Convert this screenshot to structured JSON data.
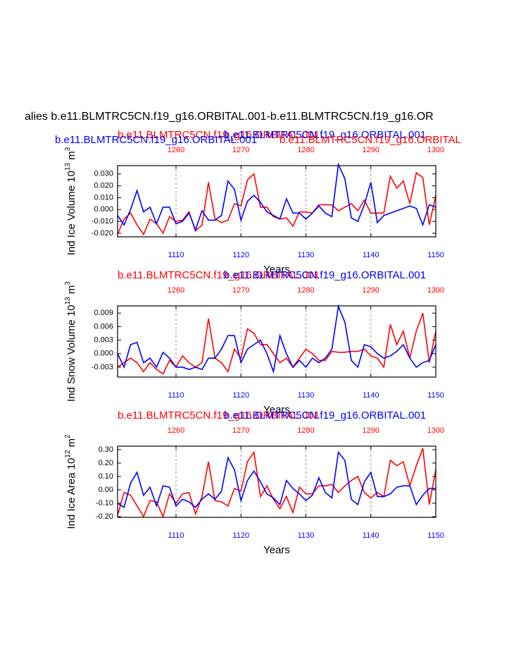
{
  "title": "alies b.e11.BLMTRC5CN.f19_g16.ORBITAL.001-b.e11.BLMTRC5CN.f19_g16.OR",
  "chart_data": [
    {
      "type": "line",
      "ylabel": [
        {
          "text": "Ind Ice Volume 10"
        },
        {
          "text": "13",
          "sup": true
        },
        {
          "text": " m"
        },
        {
          "text": "3",
          "sup": true
        }
      ],
      "xlabel": "Years",
      "extra_labels": [
        {
          "text": "b.e11.BLMTRC5CN.f19_g16.ORBITAL.001",
          "color": "#0000ff"
        },
        {
          "text": "b.e11.BLMTRC5CN.f19_g16.ORBITAL",
          "color": "#ff0000"
        }
      ],
      "xlim": [
        1101,
        1150
      ],
      "xticks": [
        1110,
        1120,
        1130,
        1140,
        1150
      ],
      "x2lim": [
        1251,
        1300
      ],
      "x2ticks": [
        1260,
        1270,
        1280,
        1290,
        1300
      ],
      "ylim": [
        -0.023,
        0.037
      ],
      "yticks": [
        {
          "value": 0.03,
          "label": "0.030"
        },
        {
          "value": 0.02,
          "label": "0.020"
        },
        {
          "value": 0.01,
          "label": "0.010"
        },
        {
          "value": 0,
          "label": "0.000"
        },
        {
          "value": -0.01,
          "label": "-0.010"
        },
        {
          "value": -0.02,
          "label": "-0.020"
        }
      ],
      "grid": true,
      "x": [
        1101,
        1102,
        1103,
        1104,
        1105,
        1106,
        1107,
        1108,
        1109,
        1110,
        1111,
        1112,
        1113,
        1114,
        1115,
        1116,
        1117,
        1118,
        1119,
        1120,
        1121,
        1122,
        1123,
        1124,
        1125,
        1126,
        1127,
        1128,
        1129,
        1130,
        1131,
        1132,
        1133,
        1134,
        1135,
        1136,
        1137,
        1138,
        1139,
        1140,
        1141,
        1142,
        1143,
        1144,
        1145,
        1146,
        1147,
        1148,
        1149,
        1150
      ],
      "x2": [
        1251,
        1252,
        1253,
        1254,
        1255,
        1256,
        1257,
        1258,
        1259,
        1260,
        1261,
        1262,
        1263,
        1264,
        1265,
        1266,
        1267,
        1268,
        1269,
        1270,
        1271,
        1272,
        1273,
        1274,
        1275,
        1276,
        1277,
        1278,
        1279,
        1280,
        1281,
        1282,
        1283,
        1284,
        1285,
        1286,
        1287,
        1288,
        1289,
        1290,
        1291,
        1292,
        1293,
        1294,
        1295,
        1296,
        1297,
        1298,
        1299,
        1300
      ],
      "series": [
        {
          "name": "b.e11.BLMTRC5CN.f19_g16.ORBITAL.001",
          "color": "#ff0000",
          "axis": "x2",
          "values": [
            -0.021,
            -0.008,
            -0.003,
            -0.013,
            -0.021,
            -0.008,
            -0.012,
            -0.02,
            -0.006,
            -0.01,
            -0.009,
            -0.002,
            -0.018,
            -0.013,
            0.023,
            -0.008,
            -0.011,
            -0.009,
            0.005,
            0.003,
            0.025,
            0.03,
            0.002,
            0.002,
            -0.006,
            -0.008,
            -0.007,
            -0.014,
            -0.002,
            -0.002,
            -0.003,
            0.004,
            0.004,
            0.004,
            -0.001,
            0.002,
            0.005,
            -0.001,
            0.008,
            -0.003,
            -0.003,
            -0.003,
            0.028,
            0.018,
            0.024,
            0.005,
            0.031,
            0.027,
            -0.013,
            0.012
          ]
        },
        {
          "name": "b.e11.BLMTRC5CN.f19_g16.ORBITAL.001",
          "color": "#0000ff",
          "values": [
            -0.005,
            -0.013,
            0.0,
            0.016,
            -0.002,
            0.002,
            -0.012,
            0.002,
            0.002,
            -0.012,
            -0.01,
            -0.003,
            -0.017,
            -0.001,
            -0.009,
            -0.009,
            -0.005,
            0.024,
            0.017,
            -0.009,
            0.007,
            0.012,
            0.006,
            -0.002,
            -0.005,
            -0.008,
            0.009,
            -0.003,
            -0.003,
            -0.008,
            -0.003,
            0.003,
            -0.003,
            -0.006,
            0.038,
            0.026,
            -0.007,
            -0.01,
            0.004,
            0.023,
            -0.011,
            -0.005,
            -0.003,
            -0.001,
            0.001,
            0.003,
            0.001,
            -0.013,
            0.004,
            0.002
          ]
        }
      ]
    },
    {
      "type": "line",
      "ylabel": [
        {
          "text": "Ind Snow Volume 10"
        },
        {
          "text": "13",
          "sup": true
        },
        {
          "text": " m"
        },
        {
          "text": "3",
          "sup": true
        }
      ],
      "xlabel": "Years",
      "xlim": [
        1101,
        1150
      ],
      "xticks": [
        1110,
        1120,
        1130,
        1140,
        1150
      ],
      "x2lim": [
        1251,
        1300
      ],
      "x2ticks": [
        1260,
        1270,
        1280,
        1290,
        1300
      ],
      "ylim": [
        -0.0052,
        0.0106
      ],
      "yticks": [
        {
          "value": 0.009,
          "label": "0.009"
        },
        {
          "value": 0.006,
          "label": "0.006"
        },
        {
          "value": 0.003,
          "label": "0.003"
        },
        {
          "value": 0,
          "label": "0.000"
        },
        {
          "value": -0.003,
          "label": "-0.003"
        }
      ],
      "grid": true,
      "x": [
        1101,
        1102,
        1103,
        1104,
        1105,
        1106,
        1107,
        1108,
        1109,
        1110,
        1111,
        1112,
        1113,
        1114,
        1115,
        1116,
        1117,
        1118,
        1119,
        1120,
        1121,
        1122,
        1123,
        1124,
        1125,
        1126,
        1127,
        1128,
        1129,
        1130,
        1131,
        1132,
        1133,
        1134,
        1135,
        1136,
        1137,
        1138,
        1139,
        1140,
        1141,
        1142,
        1143,
        1144,
        1145,
        1146,
        1147,
        1148,
        1149,
        1150
      ],
      "x2": [
        1251,
        1252,
        1253,
        1254,
        1255,
        1256,
        1257,
        1258,
        1259,
        1260,
        1261,
        1262,
        1263,
        1264,
        1265,
        1266,
        1267,
        1268,
        1269,
        1270,
        1271,
        1272,
        1273,
        1274,
        1275,
        1276,
        1277,
        1278,
        1279,
        1280,
        1281,
        1282,
        1283,
        1284,
        1285,
        1286,
        1287,
        1288,
        1289,
        1290,
        1291,
        1292,
        1293,
        1294,
        1295,
        1296,
        1297,
        1298,
        1299,
        1300
      ],
      "series": [
        {
          "name": "b.e11.BLMTRC5CN.f19_g16.ORBITAL.001",
          "color": "#ff0000",
          "axis": "x2",
          "values": [
            -0.003,
            -0.002,
            -0.001,
            -0.002,
            -0.004,
            -0.002,
            -0.0035,
            -0.0045,
            -0.0015,
            -0.003,
            -0.0005,
            -0.002,
            -0.003,
            -0.002,
            0.0078,
            -0.001,
            -0.002,
            -0.004,
            0.001,
            -0.001,
            0.0055,
            0.0045,
            0.002,
            0.002,
            0.0,
            -0.002,
            -0.001,
            -0.003,
            -0.001,
            0.001,
            0.0,
            -0.0015,
            -0.0015,
            0.0005,
            0.0003,
            0.0003,
            0.0005,
            0.0005,
            0.001,
            -0.0005,
            -0.001,
            -0.003,
            0.0065,
            0.002,
            0.005,
            -0.001,
            0.005,
            0.009,
            -0.002,
            0.005
          ]
        },
        {
          "name": "b.e11.BLMTRC5CN.f19_g16.ORBITAL.001",
          "color": "#0000ff",
          "values": [
            0.0,
            -0.003,
            0.002,
            0.0025,
            -0.002,
            -0.001,
            -0.003,
            0.0003,
            -0.001,
            -0.003,
            -0.003,
            -0.0035,
            -0.003,
            -0.0035,
            -0.001,
            -0.001,
            0.001,
            0.004,
            0.004,
            -0.002,
            0.001,
            0.002,
            0.003,
            0.0,
            -0.004,
            0.004,
            0.0,
            -0.003,
            -0.0015,
            -0.003,
            -0.001,
            -0.002,
            -0.001,
            0.001,
            0.0105,
            0.007,
            -0.0015,
            -0.003,
            0.002,
            0.0015,
            0.0,
            -0.001,
            -0.0005,
            0.0005,
            0.002,
            -0.001,
            -0.003,
            -0.002,
            -0.0015,
            0.002
          ]
        }
      ]
    },
    {
      "type": "line",
      "ylabel": [
        {
          "text": "Ind Ice Area 10"
        },
        {
          "text": "12",
          "sup": true
        },
        {
          "text": " m"
        },
        {
          "text": "2",
          "sup": true
        }
      ],
      "xlabel": "Years",
      "xlim": [
        1101,
        1150
      ],
      "xticks": [
        1110,
        1120,
        1130,
        1140,
        1150
      ],
      "x2lim": [
        1251,
        1300
      ],
      "x2ticks": [
        1260,
        1270,
        1280,
        1290,
        1300
      ],
      "ylim": [
        -0.205,
        0.326
      ],
      "yticks": [
        {
          "value": 0.3,
          "label": "0.30"
        },
        {
          "value": 0.2,
          "label": "0.20"
        },
        {
          "value": 0.1,
          "label": "0.10"
        },
        {
          "value": 0,
          "label": "0.00"
        },
        {
          "value": -0.1,
          "label": "-0.10"
        },
        {
          "value": -0.2,
          "label": "-0.20"
        }
      ],
      "grid": true,
      "x": [
        1101,
        1102,
        1103,
        1104,
        1105,
        1106,
        1107,
        1108,
        1109,
        1110,
        1111,
        1112,
        1113,
        1114,
        1115,
        1116,
        1117,
        1118,
        1119,
        1120,
        1121,
        1122,
        1123,
        1124,
        1125,
        1126,
        1127,
        1128,
        1129,
        1130,
        1131,
        1132,
        1133,
        1134,
        1135,
        1136,
        1137,
        1138,
        1139,
        1140,
        1141,
        1142,
        1143,
        1144,
        1145,
        1146,
        1147,
        1148,
        1149,
        1150
      ],
      "x2": [
        1251,
        1252,
        1253,
        1254,
        1255,
        1256,
        1257,
        1258,
        1259,
        1260,
        1261,
        1262,
        1263,
        1264,
        1265,
        1266,
        1267,
        1268,
        1269,
        1270,
        1271,
        1272,
        1273,
        1274,
        1275,
        1276,
        1277,
        1278,
        1279,
        1280,
        1281,
        1282,
        1283,
        1284,
        1285,
        1286,
        1287,
        1288,
        1289,
        1290,
        1291,
        1292,
        1293,
        1294,
        1295,
        1296,
        1297,
        1298,
        1299,
        1300
      ],
      "series": [
        {
          "name": "b.e11.BLMTRC5CN.f19_g16.ORBITAL.001",
          "color": "#ff0000",
          "axis": "x2",
          "values": [
            -0.19,
            -0.02,
            -0.04,
            -0.12,
            -0.2,
            -0.08,
            -0.09,
            -0.2,
            -0.03,
            -0.1,
            -0.03,
            -0.02,
            -0.18,
            -0.05,
            0.21,
            -0.08,
            -0.09,
            -0.12,
            0.01,
            -0.01,
            0.21,
            0.28,
            -0.05,
            0.03,
            -0.07,
            -0.14,
            -0.05,
            -0.17,
            0.02,
            -0.03,
            -0.03,
            0.03,
            0.03,
            0.04,
            -0.02,
            0.03,
            0.07,
            0.1,
            -0.02,
            -0.06,
            -0.02,
            -0.05,
            0.22,
            0.18,
            0.21,
            0.03,
            0.18,
            0.31,
            -0.11,
            0.15
          ]
        },
        {
          "name": "b.e11.BLMTRC5CN.f19_g16.ORBITAL.001",
          "color": "#0000ff",
          "values": [
            -0.1,
            -0.13,
            0.05,
            0.13,
            -0.04,
            0.02,
            -0.12,
            0.03,
            0.02,
            -0.12,
            -0.07,
            -0.09,
            -0.13,
            -0.07,
            -0.03,
            -0.07,
            -0.01,
            0.24,
            0.15,
            -0.08,
            0.07,
            0.14,
            0.06,
            -0.03,
            -0.06,
            -0.11,
            0.07,
            0.01,
            -0.03,
            -0.08,
            -0.04,
            0.09,
            -0.02,
            -0.06,
            0.28,
            0.22,
            -0.07,
            -0.11,
            0.06,
            0.13,
            -0.05,
            -0.05,
            -0.03,
            0.02,
            0.03,
            0.03,
            -0.11,
            -0.04,
            0.01,
            0.01
          ]
        }
      ]
    }
  ]
}
